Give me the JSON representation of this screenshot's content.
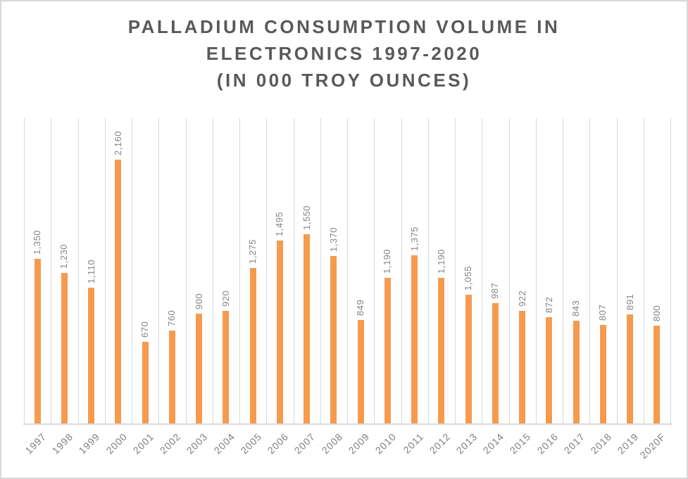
{
  "title": {
    "line1": "PALLADIUM CONSUMPTION VOLUME IN",
    "line2": "ELECTRONICS 1997-2020",
    "line3": "(IN 000 TROY OUNCES)"
  },
  "colors": {
    "bar": "#F69A4D",
    "gridline": "#D9D9D9",
    "axis_line": "#D9D9D9",
    "title_text": "#595959",
    "data_label_text": "#848484",
    "tick_label_text": "#808080",
    "frame_border": "#D9D9D9",
    "background": "#FFFFFF"
  },
  "chart_data": {
    "type": "bar",
    "title": "PALLADIUM CONSUMPTION VOLUME IN ELECTRONICS 1997-2020 (IN 000 TROY OUNCES)",
    "categories": [
      "1997",
      "1998",
      "1999",
      "2000",
      "2001",
      "2002",
      "2003",
      "2004",
      "2005",
      "2006",
      "2007",
      "2008",
      "2009",
      "2010",
      "2011",
      "2012",
      "2013",
      "2014",
      "2015",
      "2016",
      "2017",
      "2018",
      "2019",
      "2020F"
    ],
    "values": [
      1350,
      1230,
      1110,
      2160,
      670,
      760,
      900,
      920,
      1275,
      1495,
      1550,
      1370,
      849,
      1190,
      1375,
      1190,
      1055,
      987,
      922,
      872,
      843,
      807,
      891,
      800
    ],
    "value_labels": [
      "1,350",
      "1,230",
      "1,110",
      "2,160",
      "670",
      "760",
      "900",
      "920",
      "1,275",
      "1,495",
      "1,550",
      "1,370",
      "849",
      "1,190",
      "1,375",
      "1,190",
      "1,055",
      "987",
      "922",
      "872",
      "843",
      "807",
      "891",
      "800"
    ],
    "xlabel": "",
    "ylabel": "",
    "ylim": [
      0,
      2500
    ],
    "y_axis_visible": false,
    "grid": "vertical category-boundary gridlines",
    "legend": "none",
    "data_label_rotation": 90,
    "x_tick_rotation": 45
  }
}
